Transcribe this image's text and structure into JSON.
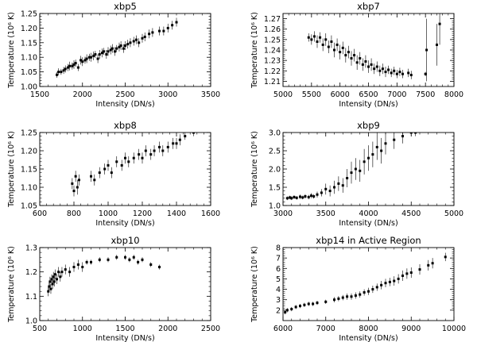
{
  "figure": {
    "background": "#ffffff",
    "ink": "#000000"
  },
  "chart_data": [
    {
      "type": "scatter",
      "title": "xbp5",
      "xlabel": "Intensity (DN/s)",
      "ylabel": "Temperature (10⁶ K)",
      "xlim": [
        1500,
        3500
      ],
      "ylim": [
        1.0,
        1.25
      ],
      "xticks": [
        1500,
        2000,
        2500,
        3000,
        3500
      ],
      "xtick_labels": [
        "1500",
        "2000",
        "2500",
        "3000",
        "3500"
      ],
      "yticks": [
        1.0,
        1.05,
        1.1,
        1.15,
        1.2,
        1.25
      ],
      "ytick_labels": [
        "1.00",
        "1.05",
        "1.10",
        "1.15",
        "1.20",
        "1.25"
      ],
      "points": [
        [
          1700,
          1.04,
          0.01
        ],
        [
          1720,
          1.05,
          0.012
        ],
        [
          1750,
          1.05,
          0.01
        ],
        [
          1780,
          1.055,
          0.012
        ],
        [
          1800,
          1.06,
          0.012
        ],
        [
          1830,
          1.065,
          0.012
        ],
        [
          1850,
          1.07,
          0.015
        ],
        [
          1880,
          1.07,
          0.012
        ],
        [
          1900,
          1.075,
          0.015
        ],
        [
          1920,
          1.08,
          0.012
        ],
        [
          1950,
          1.065,
          0.012
        ],
        [
          1980,
          1.09,
          0.015
        ],
        [
          2000,
          1.085,
          0.015
        ],
        [
          2030,
          1.09,
          0.012
        ],
        [
          2050,
          1.095,
          0.015
        ],
        [
          2080,
          1.1,
          0.012
        ],
        [
          2100,
          1.1,
          0.015
        ],
        [
          2130,
          1.105,
          0.015
        ],
        [
          2150,
          1.11,
          0.012
        ],
        [
          2180,
          1.095,
          0.015
        ],
        [
          2200,
          1.11,
          0.015
        ],
        [
          2230,
          1.115,
          0.015
        ],
        [
          2250,
          1.12,
          0.012
        ],
        [
          2280,
          1.11,
          0.015
        ],
        [
          2300,
          1.12,
          0.015
        ],
        [
          2330,
          1.125,
          0.015
        ],
        [
          2350,
          1.13,
          0.015
        ],
        [
          2380,
          1.12,
          0.015
        ],
        [
          2400,
          1.13,
          0.012
        ],
        [
          2430,
          1.135,
          0.015
        ],
        [
          2450,
          1.14,
          0.015
        ],
        [
          2480,
          1.13,
          0.015
        ],
        [
          2500,
          1.14,
          0.015
        ],
        [
          2530,
          1.145,
          0.015
        ],
        [
          2560,
          1.15,
          0.015
        ],
        [
          2600,
          1.155,
          0.015
        ],
        [
          2630,
          1.16,
          0.015
        ],
        [
          2660,
          1.15,
          0.015
        ],
        [
          2700,
          1.165,
          0.015
        ],
        [
          2730,
          1.17,
          0.015
        ],
        [
          2780,
          1.18,
          0.015
        ],
        [
          2820,
          1.185,
          0.015
        ],
        [
          2900,
          1.19,
          0.015
        ],
        [
          2950,
          1.19,
          0.015
        ],
        [
          3000,
          1.2,
          0.015
        ],
        [
          3050,
          1.21,
          0.015
        ],
        [
          3100,
          1.22,
          0.015
        ]
      ]
    },
    {
      "type": "scatter",
      "title": "xbp7",
      "xlabel": "Intensity (DN/s)",
      "ylabel": "Temperature (10⁶ K)",
      "xlim": [
        5000,
        8000
      ],
      "ylim": [
        1.205,
        1.275
      ],
      "xticks": [
        5000,
        5500,
        6000,
        6500,
        7000,
        7500,
        8000
      ],
      "xtick_labels": [
        "5000",
        "5500",
        "6000",
        "6500",
        "7000",
        "7500",
        "8000"
      ],
      "yticks": [
        1.21,
        1.22,
        1.23,
        1.24,
        1.25,
        1.26,
        1.27
      ],
      "ytick_labels": [
        "1.21",
        "1.22",
        "1.23",
        "1.24",
        "1.25",
        "1.26",
        "1.27"
      ],
      "points": [
        [
          5450,
          1.252,
          0.004
        ],
        [
          5500,
          1.25,
          0.005
        ],
        [
          5550,
          1.253,
          0.005
        ],
        [
          5600,
          1.248,
          0.006
        ],
        [
          5650,
          1.252,
          0.005
        ],
        [
          5700,
          1.245,
          0.006
        ],
        [
          5750,
          1.25,
          0.006
        ],
        [
          5800,
          1.243,
          0.006
        ],
        [
          5850,
          1.248,
          0.006
        ],
        [
          5900,
          1.24,
          0.007
        ],
        [
          5950,
          1.245,
          0.006
        ],
        [
          6000,
          1.238,
          0.007
        ],
        [
          6050,
          1.242,
          0.006
        ],
        [
          6100,
          1.235,
          0.007
        ],
        [
          6150,
          1.238,
          0.006
        ],
        [
          6200,
          1.232,
          0.007
        ],
        [
          6250,
          1.235,
          0.006
        ],
        [
          6300,
          1.228,
          0.007
        ],
        [
          6350,
          1.232,
          0.006
        ],
        [
          6400,
          1.226,
          0.006
        ],
        [
          6450,
          1.229,
          0.006
        ],
        [
          6500,
          1.224,
          0.006
        ],
        [
          6550,
          1.226,
          0.006
        ],
        [
          6600,
          1.222,
          0.005
        ],
        [
          6650,
          1.224,
          0.005
        ],
        [
          6700,
          1.22,
          0.005
        ],
        [
          6750,
          1.222,
          0.005
        ],
        [
          6800,
          1.219,
          0.005
        ],
        [
          6850,
          1.221,
          0.004
        ],
        [
          6900,
          1.218,
          0.004
        ],
        [
          6950,
          1.22,
          0.004
        ],
        [
          7000,
          1.217,
          0.004
        ],
        [
          7050,
          1.219,
          0.004
        ],
        [
          7100,
          1.217,
          0.004
        ],
        [
          7200,
          1.218,
          0.004
        ],
        [
          7250,
          1.216,
          0.004
        ],
        [
          7500,
          1.217,
          0.002
        ],
        [
          7520,
          1.24,
          0.03
        ],
        [
          7700,
          1.245,
          0.02
        ],
        [
          7750,
          1.265,
          0.02
        ]
      ]
    },
    {
      "type": "scatter",
      "title": "xbp8",
      "xlabel": "Intensity (DN/s)",
      "ylabel": "Temperature (10⁶ K)",
      "xlim": [
        600,
        1600
      ],
      "ylim": [
        1.05,
        1.25
      ],
      "xticks": [
        600,
        800,
        1000,
        1200,
        1400,
        1600
      ],
      "xtick_labels": [
        "600",
        "800",
        "1000",
        "1200",
        "1400",
        "1600"
      ],
      "yticks": [
        1.05,
        1.1,
        1.15,
        1.2,
        1.25
      ],
      "ytick_labels": [
        "1.05",
        "1.10",
        "1.15",
        "1.20",
        "1.25"
      ],
      "points": [
        [
          790,
          1.11,
          0.015
        ],
        [
          800,
          1.09,
          0.015
        ],
        [
          810,
          1.13,
          0.015
        ],
        [
          820,
          1.1,
          0.02
        ],
        [
          830,
          1.12,
          0.015
        ],
        [
          900,
          1.13,
          0.015
        ],
        [
          920,
          1.12,
          0.015
        ],
        [
          950,
          1.14,
          0.015
        ],
        [
          980,
          1.15,
          0.015
        ],
        [
          1000,
          1.16,
          0.015
        ],
        [
          1020,
          1.14,
          0.015
        ],
        [
          1050,
          1.17,
          0.015
        ],
        [
          1080,
          1.16,
          0.015
        ],
        [
          1100,
          1.18,
          0.015
        ],
        [
          1120,
          1.17,
          0.015
        ],
        [
          1150,
          1.18,
          0.015
        ],
        [
          1180,
          1.19,
          0.015
        ],
        [
          1200,
          1.18,
          0.015
        ],
        [
          1220,
          1.2,
          0.015
        ],
        [
          1250,
          1.19,
          0.015
        ],
        [
          1270,
          1.2,
          0.015
        ],
        [
          1300,
          1.21,
          0.015
        ],
        [
          1320,
          1.2,
          0.015
        ],
        [
          1350,
          1.21,
          0.015
        ],
        [
          1380,
          1.22,
          0.015
        ],
        [
          1400,
          1.22,
          0.015
        ],
        [
          1420,
          1.23,
          0.015
        ],
        [
          1450,
          1.24,
          0.01
        ],
        [
          1500,
          1.25,
          0.01
        ]
      ]
    },
    {
      "type": "scatter",
      "title": "xbp9",
      "xlabel": "Intensity (DN/s)",
      "ylabel": "Temperature (10⁶ K)",
      "xlim": [
        3000,
        5000
      ],
      "ylim": [
        1.0,
        3.0
      ],
      "xticks": [
        3000,
        3500,
        4000,
        4500,
        5000
      ],
      "xtick_labels": [
        "3000",
        "3500",
        "4000",
        "4500",
        "5000"
      ],
      "yticks": [
        1.0,
        1.5,
        2.0,
        2.5,
        3.0
      ],
      "ytick_labels": [
        "1.0",
        "1.5",
        "2.0",
        "2.5",
        "3.0"
      ],
      "points": [
        [
          3050,
          1.2,
          0.05
        ],
        [
          3080,
          1.22,
          0.05
        ],
        [
          3100,
          1.2,
          0.05
        ],
        [
          3130,
          1.23,
          0.05
        ],
        [
          3160,
          1.21,
          0.05
        ],
        [
          3200,
          1.24,
          0.06
        ],
        [
          3230,
          1.22,
          0.05
        ],
        [
          3260,
          1.25,
          0.06
        ],
        [
          3300,
          1.23,
          0.06
        ],
        [
          3330,
          1.27,
          0.07
        ],
        [
          3360,
          1.25,
          0.06
        ],
        [
          3400,
          1.3,
          0.08
        ],
        [
          3450,
          1.35,
          0.1
        ],
        [
          3500,
          1.45,
          0.15
        ],
        [
          3550,
          1.4,
          0.15
        ],
        [
          3600,
          1.5,
          0.18
        ],
        [
          3650,
          1.6,
          0.2
        ],
        [
          3700,
          1.55,
          0.2
        ],
        [
          3750,
          1.75,
          0.25
        ],
        [
          3800,
          1.9,
          0.3
        ],
        [
          3850,
          2.0,
          0.3
        ],
        [
          3900,
          1.95,
          0.3
        ],
        [
          3950,
          2.2,
          0.35
        ],
        [
          4000,
          2.3,
          0.35
        ],
        [
          4050,
          2.4,
          0.35
        ],
        [
          4100,
          2.6,
          0.35
        ],
        [
          4150,
          2.5,
          0.35
        ],
        [
          4200,
          2.7,
          0.3
        ],
        [
          4300,
          2.8,
          0.25
        ],
        [
          4400,
          2.9,
          0.2
        ],
        [
          4500,
          3.0,
          0.1
        ],
        [
          4550,
          3.0,
          0.1
        ]
      ]
    },
    {
      "type": "scatter",
      "title": "xbp10",
      "xlabel": "Intensity (DN/s)",
      "ylabel": "Temperature (10⁶ K)",
      "xlim": [
        500,
        2500
      ],
      "ylim": [
        1.0,
        1.3
      ],
      "xticks": [
        500,
        1000,
        1500,
        2000,
        2500
      ],
      "xtick_labels": [
        "500",
        "1000",
        "1500",
        "2000",
        "2500"
      ],
      "yticks": [
        1.0,
        1.1,
        1.2,
        1.3
      ],
      "ytick_labels": [
        "1.0",
        "1.1",
        "1.2",
        "1.3"
      ],
      "points": [
        [
          600,
          1.12,
          0.02
        ],
        [
          610,
          1.14,
          0.02
        ],
        [
          620,
          1.16,
          0.02
        ],
        [
          630,
          1.13,
          0.02
        ],
        [
          640,
          1.17,
          0.02
        ],
        [
          650,
          1.15,
          0.02
        ],
        [
          660,
          1.18,
          0.02
        ],
        [
          670,
          1.16,
          0.02
        ],
        [
          680,
          1.19,
          0.02
        ],
        [
          700,
          1.17,
          0.02
        ],
        [
          720,
          1.2,
          0.02
        ],
        [
          740,
          1.18,
          0.02
        ],
        [
          760,
          1.2,
          0.02
        ],
        [
          800,
          1.21,
          0.02
        ],
        [
          850,
          1.2,
          0.02
        ],
        [
          900,
          1.22,
          0.02
        ],
        [
          950,
          1.23,
          0.02
        ],
        [
          1000,
          1.22,
          0.02
        ],
        [
          1050,
          1.24,
          0.01
        ],
        [
          1100,
          1.24,
          0.01
        ],
        [
          1200,
          1.25,
          0.01
        ],
        [
          1300,
          1.25,
          0.01
        ],
        [
          1400,
          1.26,
          0.01
        ],
        [
          1500,
          1.26,
          0.01
        ],
        [
          1550,
          1.25,
          0.01
        ],
        [
          1600,
          1.26,
          0.01
        ],
        [
          1650,
          1.24,
          0.01
        ],
        [
          1700,
          1.25,
          0.01
        ],
        [
          1800,
          1.23,
          0.01
        ],
        [
          1900,
          1.22,
          0.01
        ]
      ]
    },
    {
      "type": "scatter",
      "title": "xbp14 in Active Region",
      "xlabel": "Intensity (DN/s)",
      "ylabel": "Temperature (10⁶ K)",
      "xlim": [
        6000,
        10000
      ],
      "ylim": [
        1,
        8
      ],
      "xticks": [
        6000,
        7000,
        8000,
        9000,
        10000
      ],
      "xtick_labels": [
        "6000",
        "7000",
        "8000",
        "9000",
        "10000"
      ],
      "yticks": [
        2,
        3,
        4,
        5,
        6,
        7,
        8
      ],
      "ytick_labels": [
        "2",
        "3",
        "4",
        "5",
        "6",
        "7",
        "8"
      ],
      "points": [
        [
          6050,
          1.8,
          0.2
        ],
        [
          6100,
          2.0,
          0.2
        ],
        [
          6200,
          2.1,
          0.2
        ],
        [
          6300,
          2.3,
          0.2
        ],
        [
          6400,
          2.4,
          0.2
        ],
        [
          6500,
          2.5,
          0.2
        ],
        [
          6600,
          2.6,
          0.2
        ],
        [
          6700,
          2.6,
          0.2
        ],
        [
          6800,
          2.7,
          0.2
        ],
        [
          7000,
          2.8,
          0.2
        ],
        [
          7200,
          3.0,
          0.25
        ],
        [
          7300,
          3.1,
          0.25
        ],
        [
          7400,
          3.2,
          0.25
        ],
        [
          7500,
          3.3,
          0.3
        ],
        [
          7600,
          3.3,
          0.3
        ],
        [
          7700,
          3.4,
          0.3
        ],
        [
          7800,
          3.5,
          0.3
        ],
        [
          7900,
          3.7,
          0.3
        ],
        [
          8000,
          3.8,
          0.35
        ],
        [
          8100,
          4.0,
          0.35
        ],
        [
          8200,
          4.2,
          0.35
        ],
        [
          8300,
          4.4,
          0.4
        ],
        [
          8400,
          4.6,
          0.4
        ],
        [
          8500,
          4.7,
          0.4
        ],
        [
          8600,
          4.8,
          0.45
        ],
        [
          8700,
          5.0,
          0.45
        ],
        [
          8800,
          5.3,
          0.5
        ],
        [
          8900,
          5.5,
          0.5
        ],
        [
          9000,
          5.6,
          0.5
        ],
        [
          9200,
          5.9,
          0.5
        ],
        [
          9400,
          6.3,
          0.5
        ],
        [
          9500,
          6.5,
          0.5
        ],
        [
          9800,
          7.1,
          0.4
        ]
      ]
    }
  ]
}
